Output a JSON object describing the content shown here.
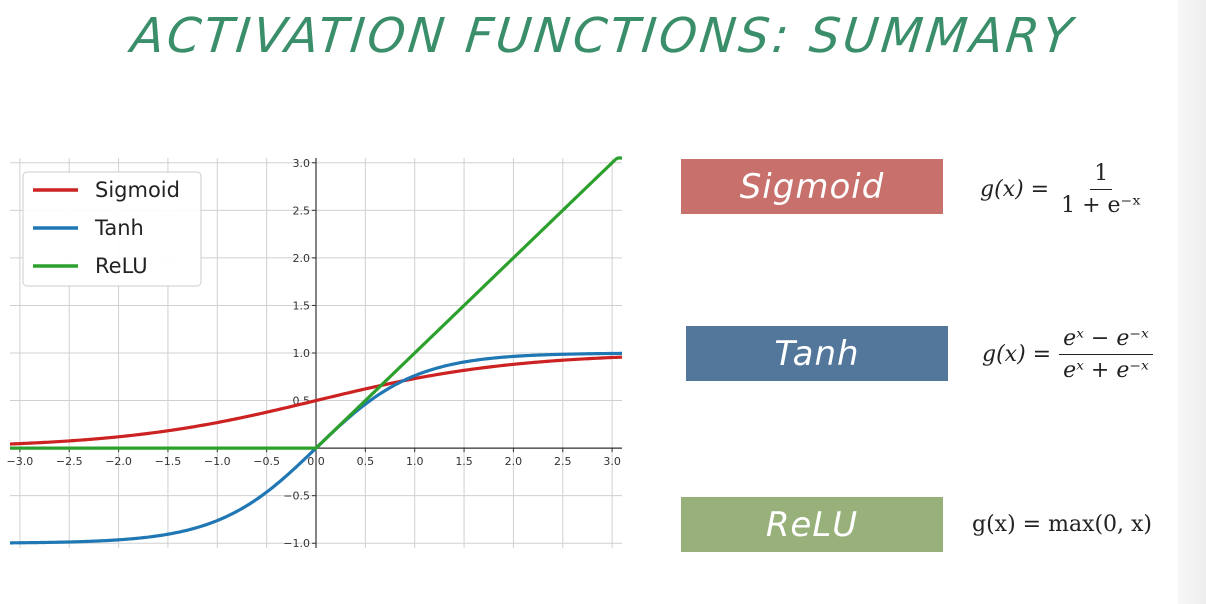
{
  "slide": {
    "title": "ACTIVATION FUNCTIONS: SUMMARY"
  },
  "functions": [
    {
      "name": "Sigmoid",
      "color": "#c8706c",
      "formula_lhs": "g(x) =",
      "formula_numerator": "1",
      "formula_denominator": "1 + e⁻ˣ"
    },
    {
      "name": "Tanh",
      "color": "#52779b",
      "formula_lhs": "g(x) =",
      "formula_numerator": "eˣ − e⁻ˣ",
      "formula_denominator": "eˣ + e⁻ˣ"
    },
    {
      "name": "ReLU",
      "color": "#98b07a",
      "formula": "g(x) = max(0, x)"
    }
  ],
  "chart_data": {
    "type": "line",
    "xlim": [
      -3.1,
      3.1
    ],
    "ylim": [
      -1.05,
      3.05
    ],
    "x_ticks": [
      -3.0,
      -2.5,
      -2.0,
      -1.5,
      -1.0,
      -0.5,
      0.0,
      0.5,
      1.0,
      1.5,
      2.0,
      2.5,
      3.0
    ],
    "x_tick_labels": [
      "−3.0",
      "−2.5",
      "−2.0",
      "−1.5",
      "−1.0",
      "−0.5",
      "0.0",
      "0.5",
      "1.0",
      "1.5",
      "2.0",
      "2.5",
      "3.0"
    ],
    "y_ticks": [
      -1.0,
      -0.5,
      0.0,
      0.5,
      1.0,
      1.5,
      2.0,
      2.5,
      3.0
    ],
    "y_tick_labels": [
      "−1.0",
      "−0.5",
      "0.0",
      "0.5",
      "1.0",
      "1.5",
      "2.0",
      "2.5",
      "3.0"
    ],
    "grid": true,
    "legend": "top-left",
    "x": [
      -3.0,
      -2.5,
      -2.0,
      -1.5,
      -1.0,
      -0.5,
      0.0,
      0.5,
      1.0,
      1.5,
      2.0,
      2.5,
      3.0
    ],
    "series": [
      {
        "name": "Sigmoid",
        "color": "#cc2222",
        "values": [
          0.047,
          0.076,
          0.119,
          0.182,
          0.269,
          0.378,
          0.5,
          0.622,
          0.731,
          0.818,
          0.881,
          0.924,
          0.953
        ]
      },
      {
        "name": "Tanh",
        "color": "#1f77b4",
        "values": [
          -0.995,
          -0.987,
          -0.964,
          -0.905,
          -0.762,
          -0.462,
          0.0,
          0.462,
          0.762,
          0.905,
          0.964,
          0.987,
          0.995
        ]
      },
      {
        "name": "ReLU",
        "color": "#2ca02c",
        "values": [
          0.0,
          0.0,
          0.0,
          0.0,
          0.0,
          0.0,
          0.0,
          0.5,
          1.0,
          1.5,
          2.0,
          2.5,
          3.0
        ]
      }
    ]
  }
}
